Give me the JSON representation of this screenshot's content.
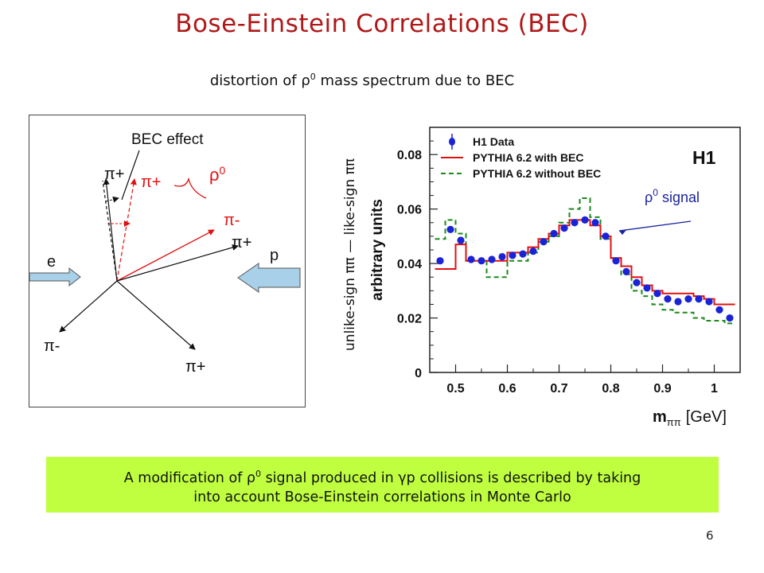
{
  "slide": {
    "title": "Bose-Einstein Correlations (BEC)",
    "subtitle_prefix": "distortion of ρ",
    "subtitle_sup": "0",
    "subtitle_suffix": " mass spectrum due to BEC",
    "number": "6"
  },
  "diagram": {
    "bec_effect_label": "BEC effect",
    "rho_label": "ρ",
    "rho_sup": "0",
    "e_label": "e",
    "p_label": "p",
    "pi_plus_upper_left": "π+",
    "pi_plus_red": "π+",
    "pi_minus_red": "π-",
    "pi_plus_right": "π+",
    "pi_minus_lower_left": "π-",
    "pi_plus_lower_right": "π+"
  },
  "yaxis_text": "unlike-sign ππ — like-sign ππ",
  "note": {
    "line1_a": "A modification of ρ",
    "line1_sup": "0",
    "line1_b": " signal produced in γp collisions is described by taking",
    "line2": "into account Bose-Einstein correlations in Monte Carlo"
  },
  "colors": {
    "title": "#b01818",
    "data_points": "#1a23d6",
    "with_bec": "#e01010",
    "without_bec": "#1a8a1a",
    "note_background": "#bfff40",
    "annotation": "#1a23a0"
  },
  "chart_data": {
    "type": "line",
    "xlabel": "m",
    "xlabel_sub": "ππ",
    "xlabel_unit": "[GeV]",
    "ylabel": "arbitrary units",
    "experiment_label": "H1",
    "annotation": "ρ",
    "annotation_sup": "0",
    "annotation_suffix": " signal",
    "xlim": [
      0.45,
      1.05
    ],
    "ylim": [
      0,
      0.09
    ],
    "x_ticks": [
      0.5,
      0.6,
      0.7,
      0.8,
      0.9,
      1.0
    ],
    "x_tick_labels": [
      "0.5",
      "0.6",
      "0.7",
      "0.8",
      "0.9",
      "1"
    ],
    "y_ticks": [
      0,
      0.02,
      0.04,
      0.06,
      0.08
    ],
    "y_tick_labels": [
      "0",
      "0.02",
      "0.04",
      "0.06",
      "0.08"
    ],
    "legend_position": "top-left",
    "bin_edges": [
      0.46,
      0.48,
      0.5,
      0.52,
      0.54,
      0.56,
      0.58,
      0.6,
      0.62,
      0.64,
      0.66,
      0.68,
      0.7,
      0.72,
      0.74,
      0.76,
      0.78,
      0.8,
      0.82,
      0.84,
      0.86,
      0.88,
      0.9,
      0.92,
      0.94,
      0.96,
      0.98,
      1.0,
      1.02,
      1.04
    ],
    "series": [
      {
        "name": "H1 Data",
        "style": "points",
        "x": [
          0.47,
          0.49,
          0.51,
          0.53,
          0.55,
          0.57,
          0.59,
          0.61,
          0.63,
          0.65,
          0.67,
          0.69,
          0.71,
          0.73,
          0.75,
          0.77,
          0.79,
          0.81,
          0.83,
          0.85,
          0.87,
          0.89,
          0.91,
          0.93,
          0.95,
          0.97,
          0.99,
          1.01,
          1.03
        ],
        "values": [
          0.041,
          0.0525,
          0.0485,
          0.0415,
          0.041,
          0.0415,
          0.0425,
          0.043,
          0.0435,
          0.0445,
          0.048,
          0.051,
          0.053,
          0.055,
          0.056,
          0.055,
          0.05,
          0.041,
          0.037,
          0.033,
          0.031,
          0.029,
          0.027,
          0.026,
          0.027,
          0.027,
          0.026,
          0.023,
          0.02
        ]
      },
      {
        "name": "PYTHIA 6.2 with BEC",
        "style": "step",
        "values": [
          0.038,
          0.038,
          0.047,
          0.041,
          0.041,
          0.041,
          0.041,
          0.044,
          0.044,
          0.046,
          0.049,
          0.051,
          0.054,
          0.056,
          0.056,
          0.054,
          0.05,
          0.042,
          0.039,
          0.035,
          0.032,
          0.03,
          0.029,
          0.029,
          0.029,
          0.028,
          0.027,
          0.025,
          0.025
        ]
      },
      {
        "name": "PYTHIA 6.2 without BEC",
        "style": "step",
        "values": [
          0.049,
          0.056,
          0.051,
          0.041,
          0.041,
          0.035,
          0.035,
          0.041,
          0.041,
          0.044,
          0.048,
          0.05,
          0.055,
          0.06,
          0.064,
          0.057,
          0.049,
          0.042,
          0.036,
          0.03,
          0.028,
          0.025,
          0.023,
          0.022,
          0.022,
          0.02,
          0.019,
          0.019,
          0.018
        ]
      }
    ]
  }
}
